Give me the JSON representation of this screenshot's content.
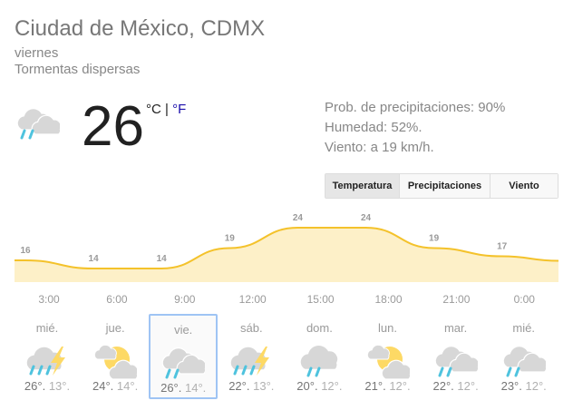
{
  "location": "Ciudad de México, CDMX",
  "day": "viernes",
  "condition": "Tormentas dispersas",
  "current": {
    "temp": "26",
    "unit_c": "°C",
    "separator": "|",
    "unit_f": "°F",
    "icon": "rain-clouds-icon"
  },
  "details": [
    "Prob. de precipitaciones: 90%",
    "Humedad: 52%.",
    "Viento: a 19 km/h."
  ],
  "tabs": [
    {
      "label": "Temperatura",
      "selected": true
    },
    {
      "label": "Precipitaciones"
    },
    {
      "label": "Viento"
    }
  ],
  "colors": {
    "line": "#f4c22b",
    "fill": "#fdf0c8",
    "rain": "#4fc3de",
    "sun": "#fdd965",
    "cloud": "#d7d7d7",
    "selected": "#9fc4f4"
  },
  "chart_data": {
    "type": "area",
    "x": [
      "3:00",
      "6:00",
      "9:00",
      "12:00",
      "15:00",
      "18:00",
      "21:00",
      "0:00"
    ],
    "values": [
      16,
      14,
      14,
      19,
      24,
      24,
      19,
      17
    ],
    "ylabel": "",
    "xlabel": ""
  },
  "forecast": [
    {
      "day": "mié.",
      "hi": "26°.",
      "lo": "13°.",
      "icon": "thunderstorm"
    },
    {
      "day": "jue.",
      "hi": "24°.",
      "lo": "14°.",
      "icon": "partly-sunny"
    },
    {
      "day": "vie.",
      "hi": "26°.",
      "lo": "14°.",
      "icon": "rain-clouds",
      "selected": true
    },
    {
      "day": "sáb.",
      "hi": "22°.",
      "lo": "13°.",
      "icon": "thunderstorm"
    },
    {
      "day": "dom.",
      "hi": "20°.",
      "lo": "12°.",
      "icon": "showers"
    },
    {
      "day": "lun.",
      "hi": "21°.",
      "lo": "12°.",
      "icon": "partly-sunny"
    },
    {
      "day": "mar.",
      "hi": "22°.",
      "lo": "12°.",
      "icon": "rain-clouds"
    },
    {
      "day": "mié.",
      "hi": "23°.",
      "lo": "12°.",
      "icon": "rain-clouds"
    }
  ]
}
